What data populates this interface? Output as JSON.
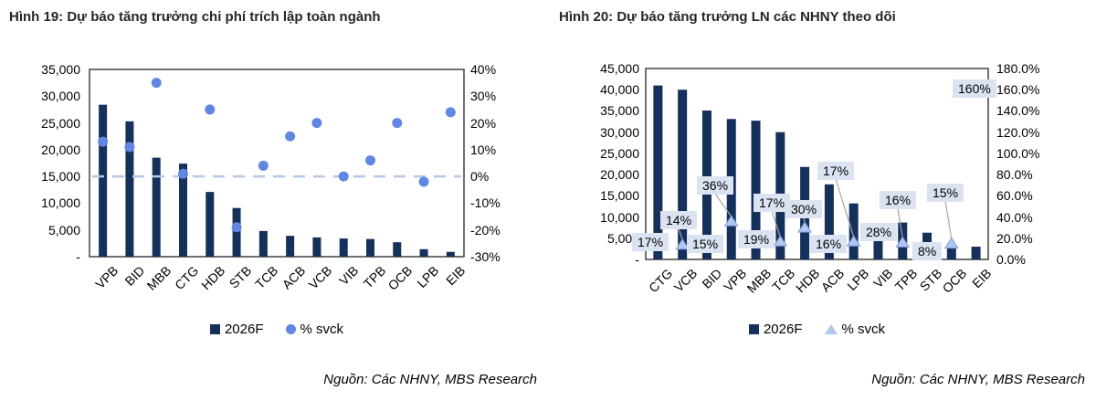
{
  "colors": {
    "bar": "#16305c",
    "scatter_circle": "#6287e2",
    "triangle_fill": "#b0c7f0",
    "triangle_stroke": "#7d9bd8",
    "zero_dash_line": "#b4c7e7",
    "label_bg": "#dbe3f2",
    "leader_line": "#a6a6a6",
    "plot_border": "#404040"
  },
  "chart_data": [
    {
      "type": "bar",
      "title": "Hình 19: Dự báo tăng trưởng chi phí trích lập toàn ngành",
      "categories": [
        "VPB",
        "BID",
        "MBB",
        "CTG",
        "HDB",
        "STB",
        "TCB",
        "ACB",
        "VCB",
        "VIB",
        "TPB",
        "OCB",
        "LPB",
        "EIB"
      ],
      "series": [
        {
          "name": "2026F",
          "type": "bar",
          "axis": "left",
          "values": [
            28400,
            25300,
            18500,
            17400,
            12100,
            9100,
            4800,
            3900,
            3600,
            3400,
            3300,
            2700,
            1400,
            900
          ]
        },
        {
          "name": "% svck",
          "type": "scatter",
          "marker": "circle",
          "axis": "right",
          "values": [
            13,
            11,
            35,
            1,
            25,
            -19,
            4,
            15,
            20,
            0,
            6,
            20,
            -2,
            24
          ]
        }
      ],
      "left_axis": {
        "min": 0,
        "max": 35000,
        "step": 5000,
        "ticks": [
          "35,000",
          "30,000",
          "25,000",
          "20,000",
          "15,000",
          "10,000",
          "5,000",
          "-"
        ]
      },
      "right_axis": {
        "min": -30,
        "max": 40,
        "step": 10,
        "ticks": [
          "40%",
          "30%",
          "20%",
          "10%",
          "0%",
          "-10%",
          "-20%",
          "-30%"
        ]
      },
      "zero_line_at_pct": 0,
      "grid": false,
      "legend": [
        "2026F",
        "% svck"
      ],
      "legend_markers": [
        "square",
        "circle"
      ],
      "data_labels": null,
      "source": "Nguồn: Các NHNY, MBS Research"
    },
    {
      "type": "bar",
      "title": "Hình 20: Dự báo tăng trưởng LN các NHNY theo dõi",
      "categories": [
        "CTG",
        "VCB",
        "BID",
        "VPB",
        "MBB",
        "TCB",
        "HDB",
        "ACB",
        "LPB",
        "VIB",
        "TPB",
        "STB",
        "OCB",
        "EIB"
      ],
      "series": [
        {
          "name": "2026F",
          "type": "bar",
          "axis": "left",
          "values": [
            41000,
            40000,
            35100,
            33100,
            32700,
            30000,
            21800,
            17700,
            13200,
            4400,
            8700,
            6300,
            2600,
            3000
          ]
        },
        {
          "name": "% svck",
          "type": "scatter",
          "marker": "triangle",
          "axis": "right",
          "values": [
            17,
            14,
            15,
            36,
            19,
            17,
            30,
            16,
            17,
            28,
            16,
            8,
            15,
            160
          ]
        }
      ],
      "left_axis": {
        "min": 0,
        "max": 45000,
        "step": 5000,
        "ticks": [
          "45,000",
          "40,000",
          "35,000",
          "30,000",
          "25,000",
          "20,000",
          "15,000",
          "10,000",
          "5,000",
          "-"
        ]
      },
      "right_axis": {
        "min": 0,
        "max": 180,
        "step": 20,
        "ticks": [
          "180.0%",
          "160.0%",
          "140.0%",
          "120.0%",
          "100.0%",
          "80.0%",
          "60.0%",
          "40.0%",
          "20.0%",
          "0.0%"
        ]
      },
      "grid": false,
      "legend": [
        "2026F",
        "% svck"
      ],
      "legend_markers": [
        "square",
        "triangle"
      ],
      "data_labels": [
        "17%",
        "14%",
        "15%",
        "36%",
        "19%",
        "17%",
        "30%",
        "16%",
        "17%",
        "28%",
        "16%",
        "8%",
        "15%",
        "160%"
      ],
      "source": "Nguồn: Các NHNY, MBS Research"
    }
  ]
}
